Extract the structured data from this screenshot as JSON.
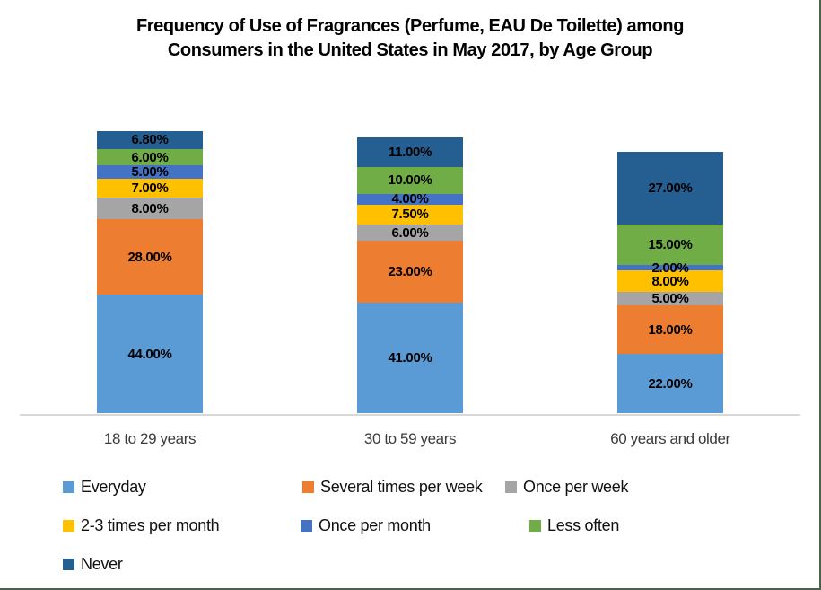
{
  "page": {
    "background": "#FFFFFF",
    "frame_border_color": "#4C614C",
    "axis_line_color": "#D9D9D9"
  },
  "chart_data": {
    "type": "bar",
    "stacked": true,
    "orientation": "vertical",
    "title": "Frequency of Use of Fragrances (Perfume, EAU De Toilette) among Consumers in the United States in May 2017, by Age Group",
    "title_lines": [
      "Frequency of Use of Fragrances (Perfume, EAU De Toilette) among",
      "Consumers in the United States in May 2017, by Age Group"
    ],
    "categories": [
      "18 to 29 years",
      "30 to 59 years",
      "60 years and older"
    ],
    "series": [
      {
        "name": "Everyday",
        "color": "#5B9BD5",
        "values": [
          44.0,
          41.0,
          22.0
        ]
      },
      {
        "name": "Several times per week",
        "color": "#ED7D31",
        "values": [
          28.0,
          23.0,
          18.0
        ]
      },
      {
        "name": "Once per week",
        "color": "#A5A5A5",
        "values": [
          8.0,
          6.0,
          5.0
        ]
      },
      {
        "name": "2-3 times per month",
        "color": "#FFC000",
        "values": [
          7.0,
          7.5,
          8.0
        ]
      },
      {
        "name": "Once per month",
        "color": "#4472C4",
        "values": [
          5.0,
          4.0,
          2.0
        ]
      },
      {
        "name": "Less often",
        "color": "#70AD47",
        "values": [
          6.0,
          10.0,
          15.0
        ]
      },
      {
        "name": "Never",
        "color": "#255E91",
        "values": [
          6.8,
          11.0,
          27.0
        ]
      }
    ],
    "data_labels": {
      "visible": true,
      "decimals": 2,
      "suffix": "%",
      "color": "#000000",
      "bold": true
    },
    "legend_position": "bottom",
    "gridlines": false,
    "y_axis_visible": false,
    "unit": "percent"
  }
}
